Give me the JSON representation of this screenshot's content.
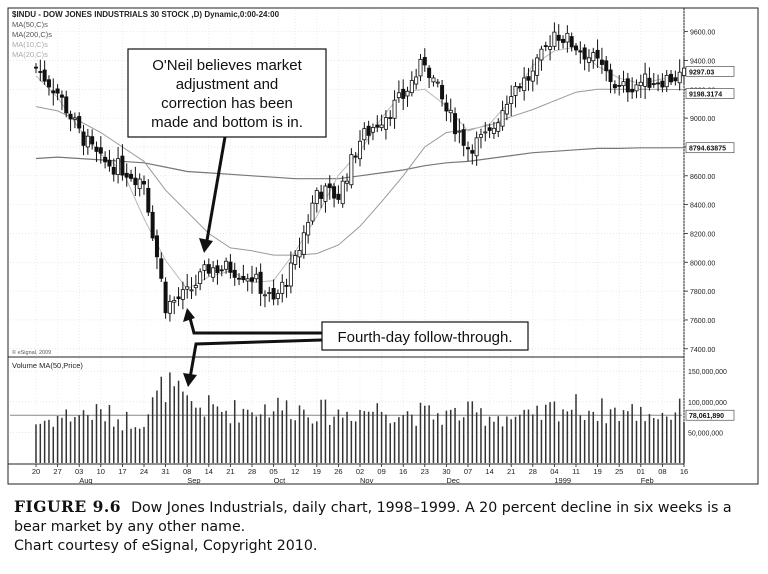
{
  "chart_data": {
    "type": "candlestick",
    "title": "$INDU - DOW JONES INDUSTRIALS 30 STOCK ,D) Dynamic,0:00-24:00",
    "legend": [
      "MA(50,C)s",
      "MA(200,C)s",
      "MA(10,C)s",
      "MA(20,C)s"
    ],
    "price_axis": {
      "range": [
        7350,
        9750
      ],
      "ticks": [
        7400,
        7600,
        7800,
        8000,
        8200,
        8400,
        8600,
        8800,
        9000,
        9200,
        9400,
        9600
      ],
      "tick_labels": [
        "7400.00",
        "7600.00",
        "7800.00",
        "8000.00",
        "8200.00",
        "8400.00",
        "8600.00",
        "8800.00",
        "9000.00",
        "9200.00",
        "9400.00",
        "9600.00"
      ],
      "value_labels": [
        "9297.03",
        "9198.3174",
        "8794.63875"
      ]
    },
    "volume_panel": {
      "title": "Volume MA(50,Price)",
      "range": [
        0,
        165000000
      ],
      "tick_labels": [
        "150,000,000",
        "100,000,000",
        "50,000,000"
      ],
      "tick_values": [
        150000000,
        100000000,
        50000000
      ],
      "ma_label": "78,061,890",
      "ma_value": 78061890
    },
    "x_axis": {
      "day_labels": [
        "20",
        "27",
        "03",
        "10",
        "17",
        "24",
        "31",
        "08",
        "14",
        "21",
        "28",
        "05",
        "12",
        "19",
        "26",
        "02",
        "09",
        "16",
        "23",
        "30",
        "07",
        "14",
        "21",
        "28",
        "04",
        "11",
        "19",
        "25",
        "01",
        "08",
        "16"
      ],
      "month_labels": [
        {
          "label": "Aug",
          "at_day": 2
        },
        {
          "label": "Sep",
          "at_day": 7
        },
        {
          "label": "Oct",
          "at_day": 11
        },
        {
          "label": "Nov",
          "at_day": 15
        },
        {
          "label": "Dec",
          "at_day": 19
        },
        {
          "label": "1999",
          "at_day": 24
        },
        {
          "label": "Feb",
          "at_day": 28
        }
      ]
    },
    "weekly_closes": [
      9350,
      9180,
      8900,
      8700,
      8650,
      8560,
      7700,
      7780,
      7960,
      7960,
      7900,
      7720,
      8000,
      8500,
      8460,
      8850,
      9000,
      9150,
      9400,
      9050,
      8800,
      8880,
      9200,
      9300,
      9600,
      9500,
      9380,
      9200,
      9250,
      9270,
      9297
    ],
    "weekly_volumes": [
      65000000,
      75000000,
      80000000,
      82000000,
      70000000,
      72000000,
      130000000,
      95000000,
      90000000,
      85000000,
      88000000,
      92000000,
      90000000,
      85000000,
      80000000,
      86000000,
      88000000,
      82000000,
      80000000,
      78000000,
      82000000,
      78000000,
      75000000,
      72000000,
      90000000,
      92000000,
      86000000,
      84000000,
      82000000,
      80000000,
      86000000
    ],
    "moving_averages": [
      {
        "name": "MA(200,C)s",
        "values": [
          8720,
          8730,
          8720,
          8710,
          8700,
          8690,
          8660,
          8630,
          8620,
          8610,
          8600,
          8590,
          8580,
          8580,
          8580,
          8600,
          8620,
          8640,
          8670,
          8690,
          8700,
          8720,
          8740,
          8760,
          8770,
          8780,
          8790,
          8790,
          8794,
          8794,
          8795
        ]
      },
      {
        "name": "MA(50,C)s",
        "values": [
          9080,
          9050,
          8980,
          8900,
          8800,
          8700,
          8500,
          8350,
          8200,
          8100,
          8080,
          8050,
          8050,
          8060,
          8120,
          8250,
          8420,
          8600,
          8800,
          8900,
          8920,
          8950,
          9010,
          9060,
          9120,
          9180,
          9200,
          9200,
          9200,
          9199,
          9198
        ]
      }
    ],
    "watermark": "© eSignal, 2009",
    "annotations": [
      {
        "lines": [
          "O'Neil believes market",
          "adjustment and",
          "correction has been",
          "made and bottom is in."
        ]
      },
      {
        "lines": [
          "Fourth-day follow-through."
        ]
      }
    ]
  },
  "caption": {
    "figure_label": "FIGURE 9.6",
    "text": "Dow Jones Industrials, daily chart, 1998–1999. A 20 percent decline in six weeks is a bear market by any other name.",
    "credit": "Chart courtesy of eSignal, Copyright 2010."
  }
}
